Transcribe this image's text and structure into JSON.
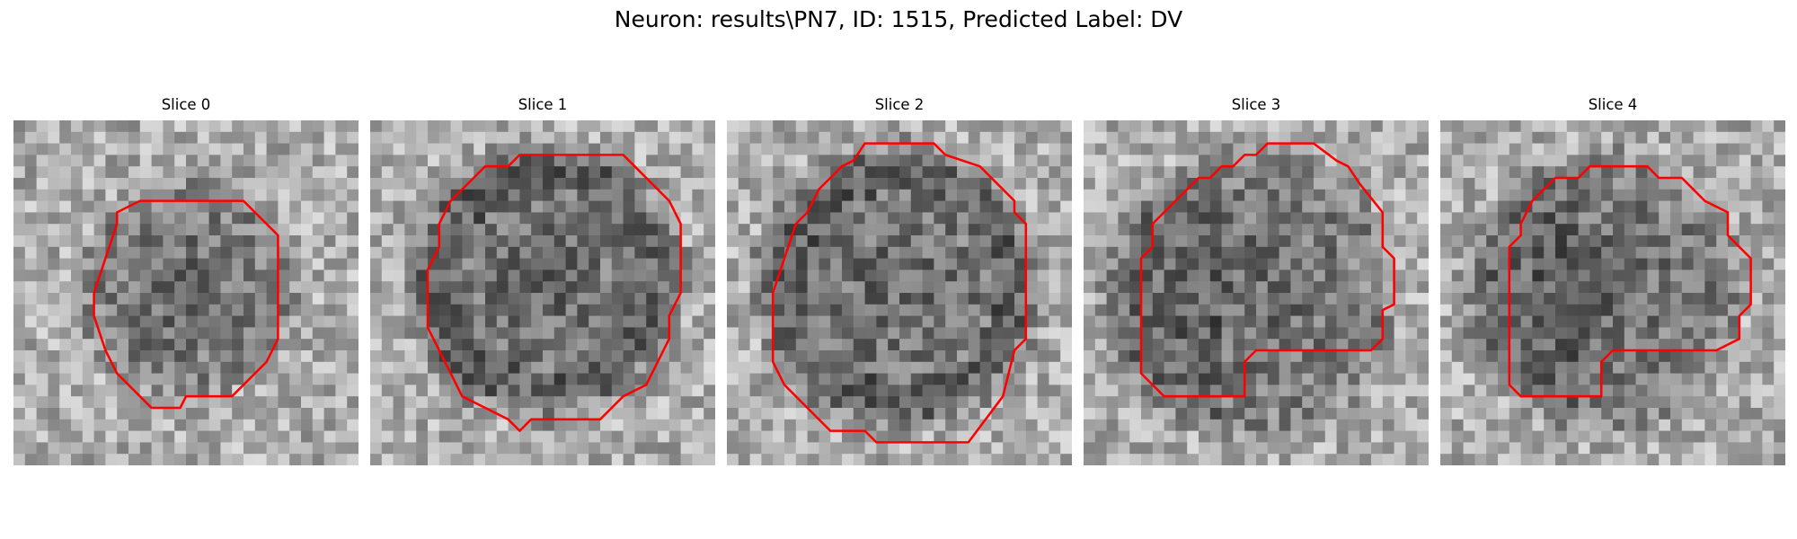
{
  "figure": {
    "title": "Neuron: results\\PN7, ID: 1515, Predicted Label: DV"
  },
  "panels": [
    {
      "title": "Slice 0"
    },
    {
      "title": "Slice 1"
    },
    {
      "title": "Slice 2"
    },
    {
      "title": "Slice 3"
    },
    {
      "title": "Slice 4"
    }
  ],
  "colors": {
    "contour": "#ff0000",
    "background": "#ffffff"
  }
}
